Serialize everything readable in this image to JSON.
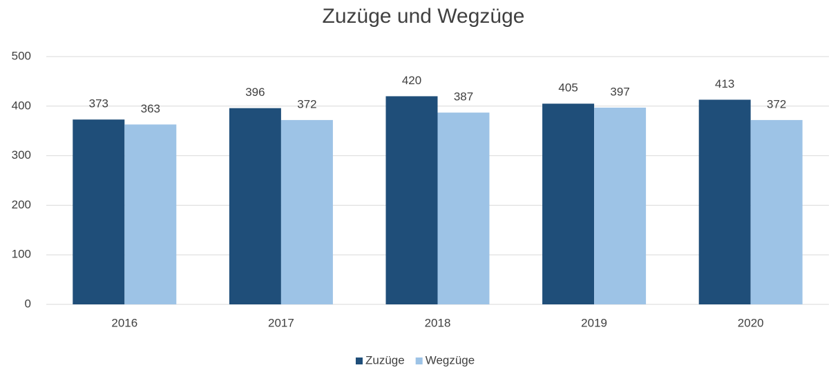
{
  "chart_data": {
    "type": "bar",
    "title": "Zuzüge und Wegzüge",
    "categories": [
      "2016",
      "2017",
      "2018",
      "2019",
      "2020"
    ],
    "series": [
      {
        "name": "Zuzüge",
        "color": "#1f4e79",
        "values": [
          373,
          396,
          420,
          405,
          413
        ]
      },
      {
        "name": "Wegzüge",
        "color": "#9dc3e6",
        "values": [
          363,
          372,
          387,
          397,
          372
        ]
      }
    ],
    "ylim": [
      0,
      500
    ],
    "yticks": [
      0,
      100,
      200,
      300,
      400,
      500
    ],
    "grid": true,
    "legend": "bottom"
  }
}
